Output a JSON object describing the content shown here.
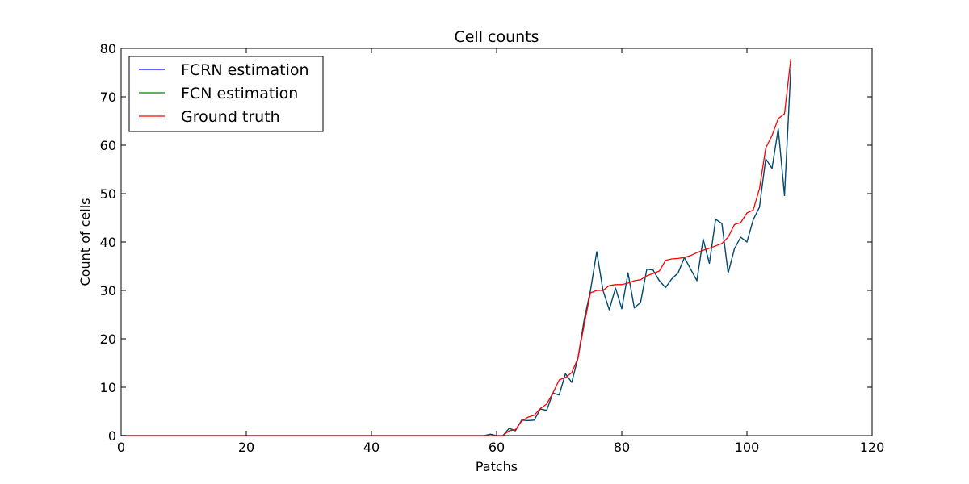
{
  "chart_data": {
    "type": "line",
    "title": "Cell counts",
    "xlabel": "Patchs",
    "ylabel": "Count of cells",
    "xlim": [
      0,
      120
    ],
    "ylim": [
      0,
      80
    ],
    "xticks": [
      0,
      20,
      40,
      60,
      80,
      100,
      120
    ],
    "yticks": [
      0,
      10,
      20,
      30,
      40,
      50,
      60,
      70,
      80
    ],
    "grid": false,
    "legend_position": "top-left",
    "series": [
      {
        "name": "FCRN estimation",
        "color": "#0000ff",
        "x": [
          0,
          10,
          20,
          30,
          40,
          50,
          58,
          59,
          60,
          61,
          62,
          63,
          64,
          65,
          66,
          67,
          68,
          69,
          70,
          71,
          72,
          73,
          74,
          75,
          76,
          77,
          78,
          79,
          80,
          81,
          82,
          83,
          84,
          85,
          86,
          87,
          88,
          89,
          90,
          91,
          92,
          93,
          94,
          95,
          96,
          97,
          98,
          99,
          100,
          101,
          102,
          103,
          104,
          105,
          106,
          107
        ],
        "y": [
          0,
          0,
          0,
          0,
          0,
          0,
          0,
          0.3,
          0,
          0,
          1.5,
          1,
          3.2,
          3.1,
          3.2,
          5.5,
          5.2,
          8.8,
          8.4,
          12.8,
          11,
          16,
          24,
          30,
          38,
          30,
          26,
          30.5,
          26.2,
          33.6,
          26.4,
          27.5,
          34.4,
          34.2,
          32,
          30.6,
          32.4,
          33.6,
          36.8,
          34.4,
          32,
          40.6,
          35.6,
          44.7,
          43.8,
          33.6,
          38.6,
          41,
          40,
          44.6,
          47.2,
          57.2,
          55.2,
          63.4,
          49.6,
          75.6
        ]
      },
      {
        "name": "FCN estimation",
        "color": "#008000",
        "x": [
          0,
          10,
          20,
          30,
          40,
          50,
          58,
          59,
          60,
          61,
          62,
          63,
          64,
          65,
          66,
          67,
          68,
          69,
          70,
          71,
          72,
          73,
          74,
          75,
          76,
          77,
          78,
          79,
          80,
          81,
          82,
          83,
          84,
          85,
          86,
          87,
          88,
          89,
          90,
          91,
          92,
          93,
          94,
          95,
          96,
          97,
          98,
          99,
          100,
          101,
          102,
          103,
          104,
          105,
          106,
          107
        ],
        "y": [
          0,
          0,
          0,
          0,
          0,
          0,
          0,
          0.3,
          0,
          0,
          1.5,
          1,
          3.2,
          3.1,
          3.2,
          5.5,
          5.2,
          8.8,
          8.4,
          12.8,
          11,
          16,
          24,
          30,
          38,
          30,
          26,
          30.5,
          26.2,
          33.6,
          26.4,
          27.5,
          34.4,
          34.2,
          32,
          30.6,
          32.4,
          33.6,
          36.8,
          34.4,
          32,
          40.6,
          35.6,
          44.7,
          43.8,
          33.6,
          38.6,
          41,
          40,
          44.6,
          47.2,
          57.2,
          55.2,
          63.4,
          49.6,
          75.6
        ]
      },
      {
        "name": "Ground truth",
        "color": "#ff0000",
        "x": [
          0,
          10,
          20,
          30,
          40,
          50,
          58,
          59,
          60,
          61,
          62,
          63,
          64,
          65,
          66,
          67,
          68,
          69,
          70,
          71,
          72,
          73,
          74,
          75,
          76,
          77,
          78,
          79,
          80,
          81,
          82,
          83,
          84,
          85,
          86,
          87,
          88,
          89,
          90,
          91,
          92,
          93,
          94,
          95,
          96,
          97,
          98,
          99,
          100,
          101,
          102,
          103,
          104,
          105,
          106,
          107
        ],
        "y": [
          0,
          0,
          0,
          0,
          0,
          0,
          0,
          0,
          0,
          0,
          1,
          1.2,
          3,
          3.8,
          4.2,
          5.6,
          6.5,
          8.8,
          11.5,
          12,
          13,
          16,
          23,
          29.5,
          30,
          30,
          31,
          31.2,
          31.2,
          31.5,
          32,
          32.2,
          33,
          33.5,
          34,
          36.2,
          36.5,
          36.6,
          36.8,
          37.2,
          37.8,
          38.3,
          38.7,
          39.2,
          39.7,
          41,
          43.6,
          44,
          46,
          46.6,
          51,
          59.4,
          62,
          65.5,
          66.5,
          77.8
        ]
      }
    ]
  }
}
